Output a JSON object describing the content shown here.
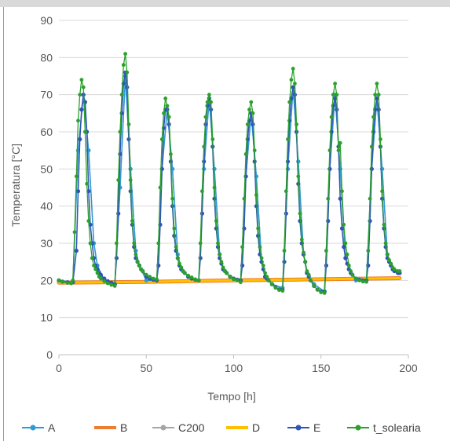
{
  "chart_data": {
    "type": "line",
    "xlabel": "Tempo [h]",
    "ylabel": "Temperatura [°C]",
    "xlim": [
      0,
      200
    ],
    "ylim": [
      0,
      90
    ],
    "x_ticks": [
      "0",
      "50",
      "100",
      "150",
      "200"
    ],
    "y_ticks": [
      "0",
      "10",
      "20",
      "30",
      "40",
      "50",
      "60",
      "70",
      "80",
      "90"
    ],
    "grid": "horizontal",
    "legend_position": "bottom",
    "legend": [
      "A",
      "B",
      "C200",
      "D",
      "E",
      "t_solearia"
    ],
    "colors": {
      "A": "#2e9bd6",
      "B": "#ed7d31",
      "C200": "#a5a5a5",
      "D": "#ffc000",
      "E": "#2f55b4",
      "t_solearia": "#2ca02c",
      "grid": "#d9d9d9"
    },
    "series": [
      {
        "name": "A",
        "x": [
          0,
          8,
          11,
          14,
          17,
          20,
          22,
          26,
          32,
          35,
          38,
          41,
          44,
          46,
          50,
          56,
          59,
          62,
          65,
          68,
          70,
          74,
          80,
          83,
          86,
          89,
          92,
          94,
          98,
          104,
          107,
          110,
          113,
          116,
          118,
          122,
          128,
          131,
          134,
          137,
          140,
          142,
          146,
          152,
          155,
          158,
          161,
          164,
          166,
          170,
          176,
          179,
          182,
          185,
          188,
          190,
          195
        ],
        "y": [
          20,
          19.5,
          55,
          70,
          55,
          30,
          24,
          20,
          19,
          45,
          75,
          50,
          28,
          24,
          20,
          20,
          50,
          66,
          50,
          27,
          23,
          21,
          20,
          50,
          69,
          50,
          27,
          23,
          21,
          20,
          48,
          65,
          48,
          25,
          21,
          19,
          18,
          50,
          72,
          52,
          27,
          22,
          19,
          17,
          50,
          70,
          50,
          26,
          23,
          20,
          20,
          50,
          69,
          50,
          27,
          24,
          22
        ]
      },
      {
        "name": "B",
        "x": [
          0,
          50,
          100,
          150,
          195
        ],
        "y": [
          19.4,
          19.6,
          20.0,
          20.3,
          20.6
        ]
      },
      {
        "name": "C200",
        "x": [
          0,
          8,
          11,
          14,
          17,
          20,
          22,
          26,
          32,
          35,
          38,
          41,
          44,
          46,
          50,
          56,
          59,
          62,
          65,
          68,
          70,
          74,
          80,
          83,
          86,
          89,
          92,
          94,
          98,
          104,
          107,
          110,
          113,
          116,
          118,
          122,
          128,
          131,
          134,
          137,
          140,
          142,
          146,
          152,
          155,
          158,
          161,
          164,
          166,
          170,
          176,
          179,
          182,
          185,
          188,
          190,
          195
        ],
        "y": [
          20,
          19.5,
          55,
          70,
          55,
          30,
          24,
          20,
          19,
          45,
          75,
          50,
          28,
          24,
          20,
          20,
          50,
          66,
          50,
          27,
          23,
          21,
          20,
          50,
          69,
          50,
          27,
          23,
          21,
          20,
          48,
          65,
          48,
          25,
          21,
          19,
          18,
          50,
          72,
          52,
          27,
          22,
          19,
          17,
          50,
          70,
          50,
          26,
          23,
          20,
          20,
          50,
          69,
          50,
          27,
          24,
          22
        ]
      },
      {
        "name": "D",
        "x": [
          0,
          50,
          100,
          150,
          195
        ],
        "y": [
          19.4,
          19.6,
          20.0,
          20.3,
          20.6
        ]
      },
      {
        "name": "E",
        "x": [
          0,
          2,
          5,
          8,
          10,
          11,
          12,
          13,
          14,
          15,
          16,
          17,
          18,
          19,
          20,
          21,
          22,
          23,
          24,
          26,
          28,
          30,
          32,
          33,
          34,
          35,
          36,
          37,
          38,
          39,
          40,
          41,
          42,
          43,
          44,
          45,
          46,
          47,
          48,
          50,
          52,
          54,
          56,
          57,
          58,
          59,
          60,
          61,
          62,
          63,
          64,
          65,
          66,
          67,
          68,
          69,
          70,
          71,
          72,
          74,
          76,
          78,
          80,
          81,
          82,
          83,
          84,
          85,
          86,
          87,
          88,
          89,
          90,
          91,
          92,
          93,
          94,
          95,
          96,
          98,
          100,
          102,
          104,
          105,
          106,
          107,
          108,
          109,
          110,
          111,
          112,
          113,
          114,
          115,
          116,
          117,
          118,
          119,
          120,
          122,
          124,
          126,
          128,
          129,
          130,
          131,
          132,
          133,
          134,
          135,
          136,
          137,
          138,
          139,
          140,
          141,
          142,
          143,
          144,
          146,
          148,
          150,
          152,
          153,
          154,
          155,
          156,
          157,
          158,
          159,
          160,
          161,
          162,
          163,
          164,
          165,
          166,
          167,
          168,
          170,
          172,
          174,
          176,
          177,
          178,
          179,
          180,
          181,
          182,
          183,
          184,
          185,
          186,
          187,
          188,
          189,
          190,
          191,
          192,
          194,
          195
        ],
        "y": [
          20,
          19.7,
          19.5,
          19.5,
          28,
          44,
          58,
          66,
          70,
          68,
          60,
          44,
          35,
          30,
          26,
          24,
          23,
          22,
          21.5,
          20.5,
          19.8,
          19.4,
          19,
          26,
          38,
          54,
          65,
          73,
          76,
          72,
          58,
          44,
          35,
          29,
          26,
          25,
          24,
          23,
          22.5,
          21,
          20.5,
          20.2,
          20,
          24,
          35,
          50,
          61,
          66,
          66,
          62,
          52,
          40,
          32,
          28,
          26,
          24,
          23,
          22.5,
          22,
          21,
          20.5,
          20.2,
          20,
          26,
          38,
          52,
          62,
          67,
          69,
          66,
          56,
          42,
          34,
          29,
          26,
          24.5,
          23,
          22.5,
          22,
          21,
          20.5,
          20.2,
          20,
          24,
          34,
          48,
          58,
          63,
          65,
          62,
          52,
          40,
          32,
          27,
          25,
          23,
          21,
          20.5,
          20,
          19,
          18.2,
          17.6,
          17.5,
          25,
          38,
          52,
          63,
          69,
          72,
          70,
          60,
          46,
          36,
          30,
          27,
          25,
          22,
          21,
          20,
          18.5,
          17.5,
          17,
          17,
          24,
          36,
          50,
          60,
          67,
          69,
          66,
          56,
          42,
          34,
          29,
          26,
          24.5,
          23,
          22,
          21.5,
          20.5,
          20.2,
          20,
          20,
          24,
          36,
          50,
          60,
          66,
          69,
          66,
          56,
          42,
          34,
          29,
          26,
          25,
          24,
          23,
          22.5,
          22,
          22
        ]
      },
      {
        "name": "t_solearia",
        "x": [
          0,
          2,
          5,
          7,
          8,
          9,
          10,
          11,
          12,
          13,
          14,
          15,
          16,
          17,
          18,
          19,
          20,
          21,
          22,
          23,
          24,
          26,
          28,
          30,
          32,
          33,
          34,
          35,
          36,
          37,
          38,
          39,
          40,
          41,
          42,
          43,
          44,
          45,
          46,
          47,
          48,
          50,
          52,
          54,
          56,
          57,
          58,
          59,
          60,
          61,
          62,
          63,
          64,
          65,
          66,
          67,
          68,
          69,
          70,
          71,
          72,
          74,
          76,
          78,
          80,
          81,
          82,
          83,
          84,
          85,
          86,
          87,
          88,
          89,
          90,
          91,
          92,
          93,
          94,
          95,
          96,
          98,
          100,
          102,
          104,
          105,
          106,
          107,
          108,
          109,
          110,
          111,
          112,
          113,
          114,
          115,
          116,
          117,
          118,
          119,
          120,
          122,
          124,
          126,
          128,
          129,
          130,
          131,
          132,
          133,
          134,
          135,
          136,
          137,
          138,
          139,
          140,
          141,
          142,
          143,
          144,
          146,
          148,
          150,
          152,
          153,
          154,
          155,
          156,
          157,
          158,
          159,
          160,
          161,
          162,
          163,
          164,
          165,
          166,
          167,
          168,
          170,
          172,
          174,
          176,
          177,
          178,
          179,
          180,
          181,
          182,
          183,
          184,
          185,
          186,
          187,
          188,
          189,
          190,
          191,
          192,
          194,
          195
        ],
        "y": [
          20,
          19.6,
          19.3,
          19.2,
          20,
          33,
          48,
          63,
          70,
          74,
          72,
          60,
          46,
          36,
          30,
          26,
          24,
          23,
          22,
          21,
          20.5,
          19.8,
          19.2,
          18.8,
          18.5,
          30,
          47,
          60,
          70,
          78,
          81,
          76,
          62,
          47,
          36,
          30,
          27,
          25,
          24,
          23,
          22.5,
          21.5,
          21,
          20.5,
          20.3,
          30,
          45,
          58,
          65,
          69,
          67,
          64,
          54,
          42,
          34,
          29,
          26,
          24.5,
          23.5,
          22.5,
          22,
          21.3,
          20.8,
          20.3,
          20,
          30,
          44,
          56,
          64,
          68,
          70,
          68,
          58,
          45,
          36,
          30,
          27,
          25,
          23.5,
          22.5,
          22,
          21,
          20.3,
          20,
          19.5,
          29,
          42,
          54,
          62,
          66,
          68,
          65,
          55,
          43,
          34,
          29,
          26,
          24,
          22,
          21,
          20,
          19,
          18,
          17.4,
          17.2,
          28,
          44,
          58,
          68,
          74,
          77,
          73,
          62,
          48,
          38,
          31,
          27.5,
          25,
          22.5,
          21.5,
          20,
          18.5,
          17.5,
          16.8,
          16.6,
          28,
          42,
          55,
          64,
          70,
          73,
          70,
          55,
          57,
          44,
          35,
          30,
          27,
          24,
          22.5,
          21.5,
          20.5,
          20,
          19.7,
          19.6,
          28,
          42,
          56,
          64,
          70,
          73,
          70,
          58,
          44,
          35,
          30,
          27,
          25.5,
          24.5,
          23.5,
          23,
          22.5,
          22.5
        ]
      }
    ]
  }
}
